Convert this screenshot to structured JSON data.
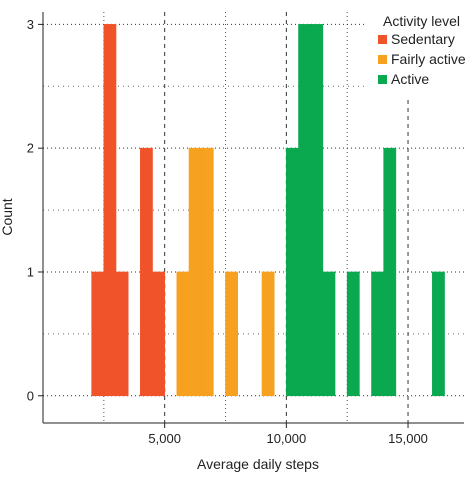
{
  "chart_data": {
    "type": "histogram",
    "xlabel": "Average daily steps",
    "ylabel": "Count",
    "xlim": [
      0,
      17300
    ],
    "ylim": [
      -0.22,
      3.1
    ],
    "bin_width": 500,
    "x_ticks": [
      5000,
      10000,
      15000
    ],
    "x_tick_labels": [
      "5,000",
      "10,000",
      "15,000"
    ],
    "y_ticks": [
      0,
      1,
      2,
      3
    ],
    "y_tick_labels": [
      "0",
      "1",
      "2",
      "3"
    ],
    "grid": true,
    "legend": {
      "title": "Activity level",
      "position": "top-right"
    },
    "series": [
      {
        "name": "Sedentary",
        "color": "#f0522a",
        "bins": [
          [
            2000,
            1
          ],
          [
            2500,
            3
          ],
          [
            3000,
            1
          ],
          [
            4000,
            2
          ],
          [
            4500,
            1
          ]
        ]
      },
      {
        "name": "Fairly active",
        "color": "#f6a11f",
        "bins": [
          [
            5500,
            1
          ],
          [
            6000,
            2
          ],
          [
            6500,
            2
          ],
          [
            7500,
            1
          ],
          [
            9000,
            1
          ]
        ]
      },
      {
        "name": "Active",
        "color": "#0aa84f",
        "bins": [
          [
            10000,
            2
          ],
          [
            10500,
            3
          ],
          [
            11000,
            3
          ],
          [
            11500,
            1
          ],
          [
            12500,
            1
          ],
          [
            13500,
            1
          ],
          [
            14000,
            2
          ],
          [
            16000,
            1
          ]
        ]
      }
    ]
  }
}
